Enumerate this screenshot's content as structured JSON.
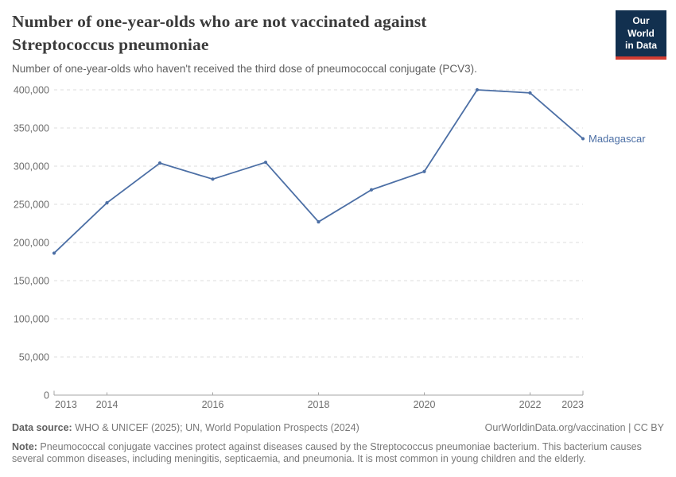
{
  "header": {
    "title": "Number of one-year-olds who are not vaccinated against Streptococcus pneumoniae",
    "subtitle": "Number of one-year-olds who haven't received the third dose of pneumococcal conjugate (PCV3)."
  },
  "brand": {
    "logo_line1": "Our World",
    "logo_line2": "in Data",
    "navy": "#12304F",
    "red": "#D13C32"
  },
  "chart_data": {
    "type": "line",
    "title": "Number of one-year-olds who are not vaccinated against Streptococcus pneumoniae",
    "x": [
      2013,
      2014,
      2015,
      2016,
      2017,
      2018,
      2019,
      2020,
      2021,
      2022,
      2023
    ],
    "series": [
      {
        "name": "Madagascar",
        "color": "#4C6FA5",
        "values": [
          186000,
          252000,
          304000,
          283000,
          305000,
          227000,
          269000,
          293000,
          400000,
          396000,
          336000
        ]
      }
    ],
    "xlim": [
      2013,
      2023
    ],
    "ylim": [
      0,
      400000
    ],
    "y_ticks": [
      0,
      50000,
      100000,
      150000,
      200000,
      250000,
      300000,
      350000,
      400000
    ],
    "x_tick_labels": [
      2013,
      2014,
      2016,
      2018,
      2020,
      2022,
      2023
    ],
    "grid": "horizontal-dashed",
    "legend_position": "end-of-line-label"
  },
  "footer": {
    "source_label": "Data source:",
    "source_text": " WHO & UNICEF (2025); UN, World Population Prospects (2024)",
    "link_text": "OurWorldinData.org/vaccination | CC BY",
    "note_label": "Note:",
    "note_text": " Pneumococcal conjugate vaccines protect against diseases caused by the Streptococcus pneumoniae bacterium. This bacterium causes several common diseases, including meningitis, septicaemia, and pneumonia. It is most common in young children and the elderly."
  }
}
